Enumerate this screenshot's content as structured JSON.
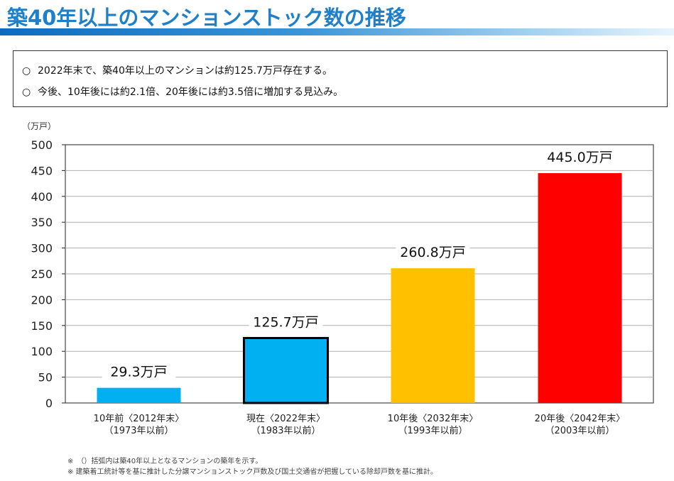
{
  "header": {
    "title": "築40年以上のマンションストック数の推移"
  },
  "summary": {
    "bullet": "○",
    "lines": [
      "2022年末で、築40年以上のマンションは約125.7万戸存在する。",
      "今後、10年後には約2.1倍、20年後には約3.5倍に増加する見込み。"
    ]
  },
  "chart_data": {
    "type": "bar",
    "title": "",
    "ylabel": "（万戸）",
    "xlabel": "",
    "ylim": [
      0,
      500
    ],
    "yticks": [
      0,
      50,
      100,
      150,
      200,
      250,
      300,
      350,
      400,
      450,
      500
    ],
    "grid": true,
    "categories": [
      [
        "10年前〈2012年末〉",
        "（1973年以前）"
      ],
      [
        "現在〈2022年末〉",
        "（1983年以前）"
      ],
      [
        "10年後〈2032年末〉",
        "（1993年以前）"
      ],
      [
        "20年後〈2042年末〉",
        "（2003年以前）"
      ]
    ],
    "values": [
      29.3,
      125.7,
      260.8,
      445.0
    ],
    "data_labels": [
      "29.3万戸",
      "125.7万戸",
      "260.8万戸",
      "445.0万戸"
    ],
    "colors": [
      "#00b0f0",
      "#00b0f0",
      "#ffc000",
      "#ff0000"
    ],
    "highlight_index": 1
  },
  "notes": [
    "※　（）括弧内は築40年以上となるマンションの築年を示す。",
    "※ 建築着工統計等を基に推計した分譲マンションストック戸数及び国土交通省が把握している除却戸数を基に推計。"
  ]
}
